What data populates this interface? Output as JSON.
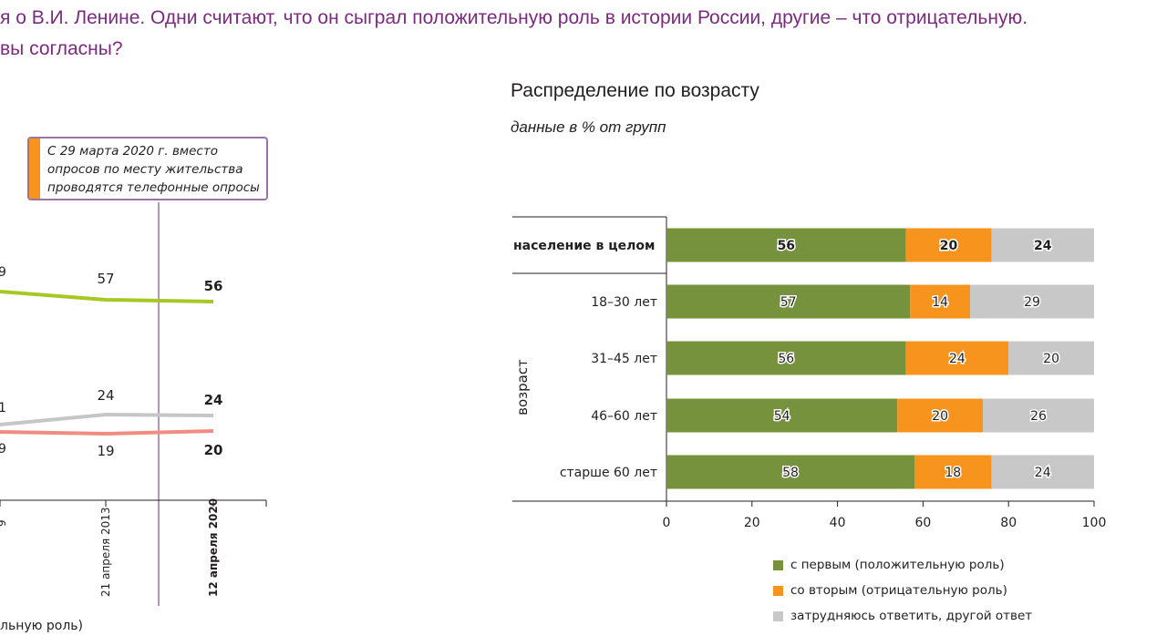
{
  "question": {
    "line1": "я о В.И. Ленине. Одни считают, что он сыграл положительную роль в истории России, другие – что отрицательную.",
    "line2": "вы согласны?"
  },
  "note": {
    "line1": "С 29 марта 2020 г. вместо",
    "line2": "опросов по месту жительства",
    "line3": "проводятся телефонные опросы"
  },
  "trend_legend_fragment": "льную роль)",
  "colors": {
    "positive": "#76923c",
    "negative": "#f7941d",
    "undecided": "#c8c8c8",
    "trend_positive": "#a6c724",
    "trend_negative": "#f08c82",
    "trend_undecided": "#c6c6c6",
    "question": "#7b2a7f",
    "divider": "#9a74a7"
  },
  "panel": {
    "title": "Распределение по возрасту",
    "subtitle": "данные в % от групп"
  },
  "chart_data": [
    {
      "type": "line",
      "x": [
        "",
        "21 апреля 2013",
        "12 апреля 2020"
      ],
      "x_partial_tick": "9",
      "series": [
        {
          "key": "positive",
          "values": [
            null,
            57,
            56
          ],
          "partial_label": "9"
        },
        {
          "key": "undecided",
          "values": [
            null,
            24,
            24
          ],
          "partial_label": "1"
        },
        {
          "key": "negative",
          "values": [
            null,
            19,
            20
          ],
          "partial_label": "9"
        }
      ],
      "last_point_bold": true
    },
    {
      "type": "bar",
      "orientation": "horizontal",
      "stacked": true,
      "axis_label": "возраст",
      "categories": [
        "население в целом",
        "18–30 лет",
        "31–45 лет",
        "46–60 лет",
        "старше 60 лет"
      ],
      "series": [
        {
          "name": "с первым (положительную роль)",
          "color": "#76923c",
          "values": [
            56,
            57,
            56,
            54,
            58
          ]
        },
        {
          "name": "со вторым (отрицательную роль)",
          "color": "#f7941d",
          "values": [
            20,
            14,
            24,
            20,
            18
          ]
        },
        {
          "name": "затрудняюсь ответить, другой ответ",
          "color": "#c8c8c8",
          "values": [
            24,
            29,
            20,
            26,
            24
          ]
        }
      ],
      "xlim": [
        0,
        100
      ],
      "xticks": [
        0,
        20,
        40,
        60,
        80,
        100
      ],
      "legend": "bottom"
    }
  ]
}
